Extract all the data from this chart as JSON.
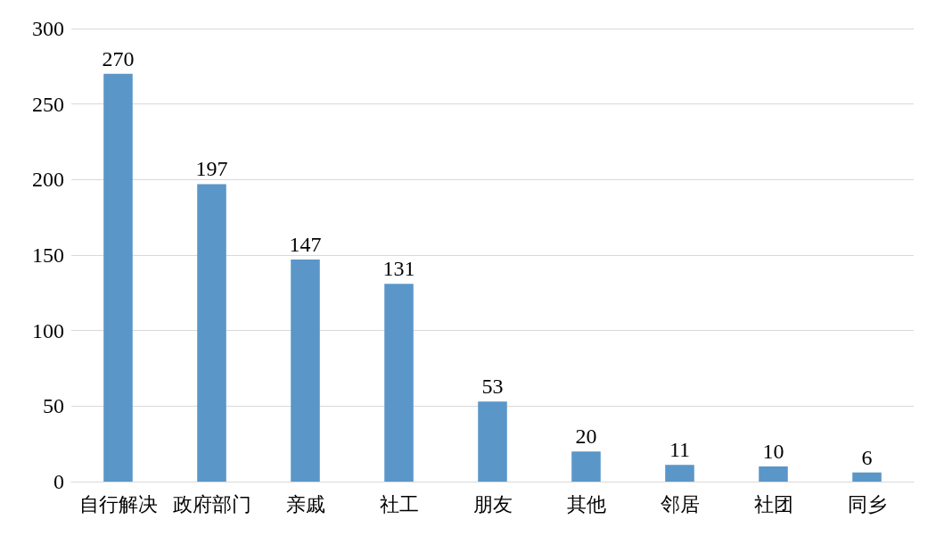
{
  "chart_data": {
    "type": "bar",
    "categories": [
      "自行解决",
      "政府部门",
      "亲戚",
      "社工",
      "朋友",
      "其他",
      "邻居",
      "社团",
      "同乡"
    ],
    "values": [
      270,
      197,
      147,
      131,
      53,
      20,
      11,
      10,
      6
    ],
    "color": "#5a96c8",
    "ylim": [
      0,
      300
    ],
    "yticks": [
      0,
      50,
      100,
      150,
      200,
      250,
      300
    ],
    "grid": "y",
    "data_labels": true
  }
}
